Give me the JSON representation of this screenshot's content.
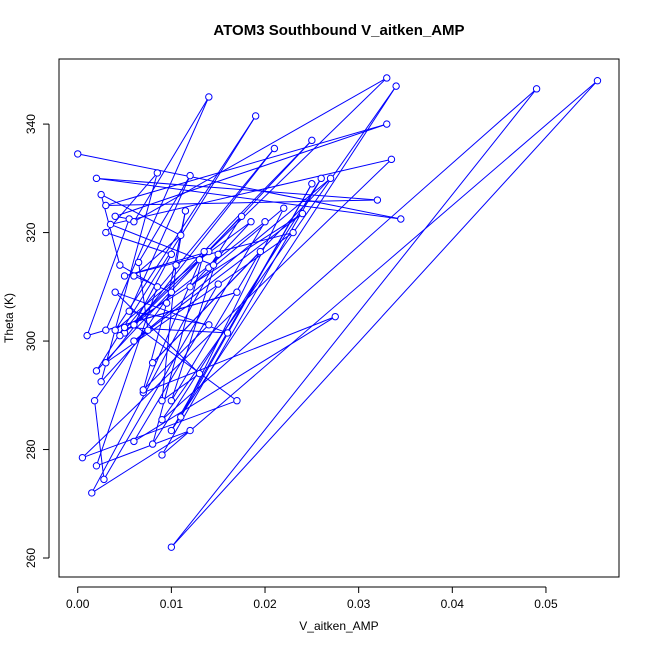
{
  "chart_data": {
    "type": "scatter",
    "title": "ATOM3 Southbound V_aitken_AMP",
    "xlabel": "V_aitken_AMP",
    "ylabel": "Theta (K)",
    "xlim": [
      -0.002,
      0.0578
    ],
    "ylim": [
      256.5,
      352
    ],
    "x_ticks": [
      0.0,
      0.01,
      0.02,
      0.03,
      0.04,
      0.05
    ],
    "x_tick_labels": [
      "0.00",
      "0.01",
      "0.02",
      "0.03",
      "0.04",
      "0.05"
    ],
    "y_ticks": [
      260,
      280,
      300,
      320,
      340
    ],
    "y_tick_labels": [
      "260",
      "280",
      "300",
      "320",
      "340"
    ],
    "grid": false,
    "legend": "none",
    "style": "points connected by lines (type=o)",
    "series_color": "#0000ff",
    "series": [
      {
        "x": [
          0.0,
          0.0345,
          0.002,
          0.032,
          0.003,
          0.033,
          0.004,
          0.0055,
          0.001,
          0.017,
          0.003,
          0.014,
          0.006,
          0.033,
          0.005,
          0.025,
          0.002,
          0.019,
          0.004,
          0.014,
          0.005,
          0.023,
          0.003,
          0.021,
          0.0045,
          0.02,
          0.006,
          0.0275,
          0.007,
          0.0135,
          0.008,
          0.026,
          0.009,
          0.0555,
          0.01,
          0.049,
          0.009,
          0.034,
          0.01,
          0.025,
          0.011,
          0.022,
          0.012,
          0.0185,
          0.013,
          0.0175,
          0.014,
          0.015,
          0.01,
          0.0195,
          0.008,
          0.027,
          0.006,
          0.024,
          0.005,
          0.016,
          0.004,
          0.013,
          0.009,
          0.0105,
          0.0115,
          0.0095,
          0.007,
          0.014,
          0.0055,
          0.012,
          0.0065,
          0.0075,
          0.0025,
          0.0085,
          0.003,
          0.01,
          0.006,
          0.017,
          0.0005,
          0.0335,
          0.0035,
          0.0145,
          0.0015,
          0.012,
          0.002,
          0.0085,
          0.0045,
          0.0025,
          0.011,
          0.006,
          0.01,
          0.0018,
          0.0028,
          0.015
        ],
        "y": [
          334.5,
          322.5,
          330.0,
          326.0,
          325.0,
          340.0,
          323.0,
          322.5,
          301.0,
          309.0,
          302.0,
          345.0,
          322.0,
          348.5,
          301.5,
          337.0,
          294.5,
          341.5,
          302.0,
          316.5,
          312.0,
          320.0,
          296.0,
          335.5,
          301.0,
          322.0,
          281.5,
          304.5,
          290.5,
          316.5,
          281.0,
          330.0,
          279.0,
          348.0,
          262.0,
          346.5,
          285.5,
          347.0,
          283.5,
          329.0,
          286.0,
          324.5,
          310.0,
          322.0,
          315.0,
          323.0,
          313.5,
          316.0,
          289.0,
          316.5,
          296.0,
          330.0,
          300.0,
          323.5,
          302.5,
          301.5,
          309.0,
          294.0,
          289.0,
          314.0,
          324.0,
          307.0,
          291.0,
          303.0,
          305.5,
          330.5,
          314.5,
          302.0,
          292.5,
          331.0,
          320.0,
          316.0,
          303.0,
          289.0,
          278.5,
          333.5,
          321.5,
          314.0,
          272.0,
          283.5,
          277.0,
          310.0,
          314.0,
          327.0,
          319.5,
          312.0,
          309.0,
          289.0,
          274.5,
          310.5
        ]
      }
    ]
  }
}
